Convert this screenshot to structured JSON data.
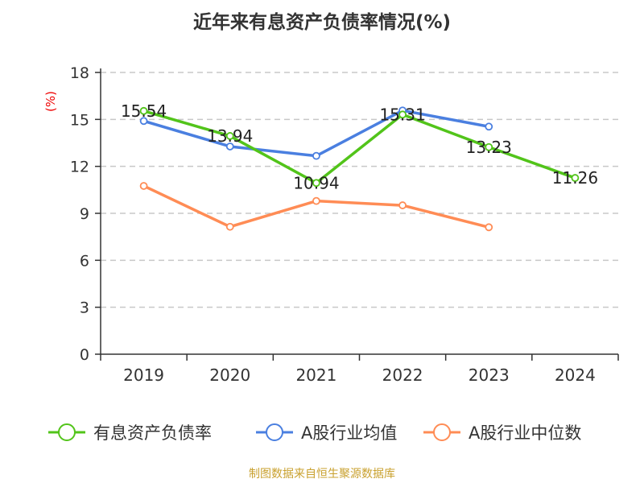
{
  "chart_data": {
    "type": "line",
    "title": "近年来有息资产负债率情况(%)",
    "ylabel": "(%)",
    "categories": [
      "2019",
      "2020",
      "2021",
      "2022",
      "2023",
      "2024"
    ],
    "ylim": [
      0,
      18
    ],
    "yticks": [
      0,
      3,
      6,
      9,
      12,
      15,
      18
    ],
    "grid": true,
    "legend_position": "bottom",
    "series": [
      {
        "name": "有息资产负债率",
        "color": "#52c41a",
        "values": [
          15.54,
          13.94,
          10.94,
          15.31,
          13.23,
          11.26
        ],
        "labels": [
          "15.54",
          "13.94",
          "10.94",
          "15.31",
          "13.23",
          "11.26"
        ]
      },
      {
        "name": "A股行业均值",
        "color": "#4a7fe0",
        "values": [
          14.9,
          13.27,
          12.67,
          15.57,
          14.54,
          null
        ]
      },
      {
        "name": "A股行业中位数",
        "color": "#ff8c55",
        "values": [
          10.75,
          8.14,
          9.79,
          9.51,
          8.11,
          null
        ]
      }
    ]
  },
  "footer": "制图数据来自恒生聚源数据库"
}
